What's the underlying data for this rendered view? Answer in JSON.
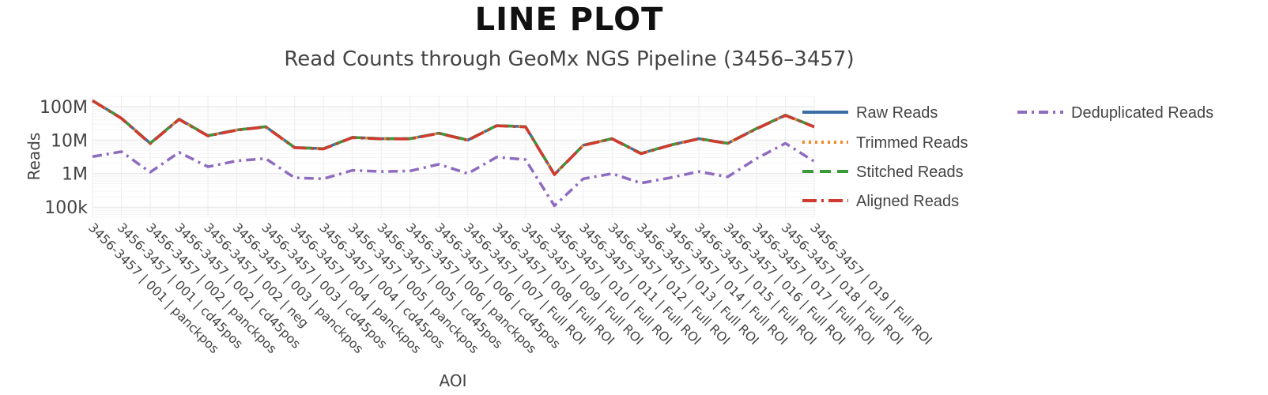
{
  "figure_title": "LINE PLOT",
  "chart_data": {
    "type": "line",
    "title": "Read Counts through GeoMx NGS Pipeline (3456–3457)",
    "xlabel": "AOI",
    "ylabel": "Reads",
    "yscale": "log",
    "ylim": [
      50000,
      200000000
    ],
    "yticks": [
      {
        "value": 100000,
        "label": "100k"
      },
      {
        "value": 1000000,
        "label": "1M"
      },
      {
        "value": 10000000,
        "label": "10M"
      },
      {
        "value": 100000000,
        "label": "100M"
      }
    ],
    "grid": true,
    "legend_position": "right",
    "categories": [
      "3456-3457 | 001 | panckpos",
      "3456-3457 | 001 | cd45pos",
      "3456-3457 | 002 | panckpos",
      "3456-3457 | 002 | cd45pos",
      "3456-3457 | 002 | neg",
      "3456-3457 | 003 | panckpos",
      "3456-3457 | 003 | cd45pos",
      "3456-3457 | 004 | panckpos",
      "3456-3457 | 004 | cd45pos",
      "3456-3457 | 005 | panckpos",
      "3456-3457 | 005 | cd45pos",
      "3456-3457 | 006 | panckpos",
      "3456-3457 | 006 | cd45pos",
      "3456-3457 | 007 | Full ROI",
      "3456-3457 | 008 | Full ROI",
      "3456-3457 | 009 | Full ROI",
      "3456-3457 | 010 | Full ROI",
      "3456-3457 | 011 | Full ROI",
      "3456-3457 | 012 | Full ROI",
      "3456-3457 | 013 | Full ROI",
      "3456-3457 | 014 | Full ROI",
      "3456-3457 | 015 | Full ROI",
      "3456-3457 | 016 | Full ROI",
      "3456-3457 | 017 | Full ROI",
      "3456-3457 | 018 | Full ROI",
      "3456-3457 | 019 | Full ROI"
    ],
    "series": [
      {
        "name": "Raw Reads",
        "color": "#3a6ea5",
        "dash": "solid",
        "values": [
          150000000,
          45000000,
          8000000,
          42000000,
          13500000,
          20000000,
          25000000,
          6000000,
          5500000,
          12000000,
          11000000,
          11000000,
          16000000,
          10000000,
          27000000,
          25000000,
          950000,
          7000000,
          11000000,
          4000000,
          7000000,
          11000000,
          8000000,
          22000000,
          55000000,
          25000000
        ]
      },
      {
        "name": "Trimmed Reads",
        "color": "#f08a24",
        "dash": "dot",
        "values": [
          150000000,
          45000000,
          8000000,
          42000000,
          13500000,
          20000000,
          25000000,
          6000000,
          5500000,
          12000000,
          11000000,
          11000000,
          16000000,
          10000000,
          27000000,
          25000000,
          950000,
          7000000,
          11000000,
          4000000,
          7000000,
          11000000,
          8000000,
          22000000,
          55000000,
          25000000
        ]
      },
      {
        "name": "Stitched Reads",
        "color": "#3a9a3a",
        "dash": "dash",
        "values": [
          150000000,
          45000000,
          8000000,
          42000000,
          13500000,
          20000000,
          25000000,
          6000000,
          5500000,
          12000000,
          11000000,
          11000000,
          16000000,
          10000000,
          27000000,
          25000000,
          950000,
          7000000,
          11000000,
          4000000,
          7000000,
          11000000,
          8000000,
          22000000,
          55000000,
          25000000
        ]
      },
      {
        "name": "Aligned Reads",
        "color": "#d13a2f",
        "dash": "longdashdot",
        "values": [
          148000000,
          44000000,
          7800000,
          41000000,
          13200000,
          19600000,
          24500000,
          5900000,
          5400000,
          11800000,
          10800000,
          10800000,
          15700000,
          9800000,
          26500000,
          24500000,
          930000,
          6900000,
          10800000,
          3900000,
          6900000,
          10800000,
          7900000,
          21500000,
          54000000,
          24500000
        ]
      },
      {
        "name": "Deduplicated Reads",
        "color": "#8e6bbf",
        "dash": "dashdot",
        "values": [
          3200000,
          4500000,
          1100000,
          4300000,
          1600000,
          2400000,
          2800000,
          750000,
          700000,
          1250000,
          1150000,
          1200000,
          1900000,
          1000000,
          3100000,
          2600000,
          110000,
          700000,
          1000000,
          520000,
          750000,
          1150000,
          800000,
          2800000,
          8000000,
          2300000
        ]
      }
    ]
  }
}
